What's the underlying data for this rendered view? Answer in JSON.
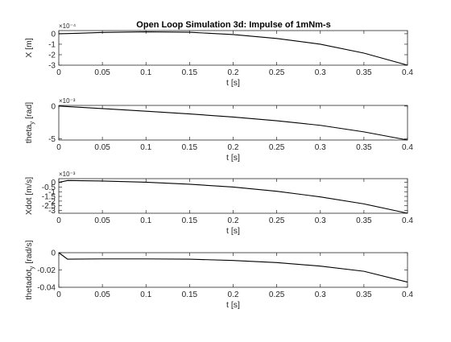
{
  "figure_title": "Open Loop Simulation 3d: Impulse of 1mNm-s",
  "chart_data": [
    {
      "type": "line",
      "title": "Open Loop Simulation 3d: Impulse of 1mNm-s",
      "xlabel": "t [s]",
      "ylabel": "X [m]",
      "ylabel_sub": "",
      "y_exponent": "×10⁻⁴",
      "xlim": [
        0,
        0.4
      ],
      "ylim": [
        -3,
        0.3
      ],
      "xticks": [
        0,
        0.05,
        0.1,
        0.15,
        0.2,
        0.25,
        0.3,
        0.35,
        0.4
      ],
      "xtick_labels": [
        "0",
        "0.05",
        "0.1",
        "0.15",
        "0.2",
        "0.25",
        "0.3",
        "0.35",
        "0.4"
      ],
      "yticks": [
        0,
        -1,
        -2,
        -3
      ],
      "ytick_labels": [
        "0",
        "-1",
        "-2",
        "-3"
      ],
      "grid": false,
      "series": [
        {
          "x": [
            0,
            0.01,
            0.02,
            0.05,
            0.1,
            0.15,
            0.2,
            0.25,
            0.3,
            0.35,
            0.4
          ],
          "y": [
            0,
            0.02,
            0.04,
            0.12,
            0.18,
            0.14,
            -0.08,
            -0.45,
            -1.0,
            -1.85,
            -3.0
          ]
        }
      ]
    },
    {
      "type": "line",
      "title": "",
      "xlabel": "t [s]",
      "ylabel": "theta",
      "ylabel_sub": "y",
      "ylabel_suffix": " [rad]",
      "y_exponent": "×10⁻³",
      "xlim": [
        0,
        0.4
      ],
      "ylim": [
        -5.2,
        0.1
      ],
      "xticks": [
        0,
        0.05,
        0.1,
        0.15,
        0.2,
        0.25,
        0.3,
        0.35,
        0.4
      ],
      "xtick_labels": [
        "0",
        "0.05",
        "0.1",
        "0.15",
        "0.2",
        "0.25",
        "0.3",
        "0.35",
        "0.4"
      ],
      "yticks": [
        0,
        -5
      ],
      "ytick_labels": [
        "0",
        "-5"
      ],
      "grid": false,
      "series": [
        {
          "x": [
            0,
            0.05,
            0.1,
            0.15,
            0.2,
            0.25,
            0.3,
            0.35,
            0.4
          ],
          "y": [
            0,
            -0.38,
            -0.78,
            -1.2,
            -1.68,
            -2.25,
            -2.95,
            -3.95,
            -5.2
          ]
        }
      ]
    },
    {
      "type": "line",
      "title": "",
      "xlabel": "t [s]",
      "ylabel": "Xdot [m/s]",
      "ylabel_sub": "",
      "y_exponent": "×10⁻³",
      "xlim": [
        0,
        0.4
      ],
      "ylim": [
        -3.3,
        0.4
      ],
      "xticks": [
        0,
        0.05,
        0.1,
        0.15,
        0.2,
        0.25,
        0.3,
        0.35,
        0.4
      ],
      "xtick_labels": [
        "0",
        "0.05",
        "0.1",
        "0.15",
        "0.2",
        "0.25",
        "0.3",
        "0.35",
        "0.4"
      ],
      "yticks": [
        0,
        -0.5,
        -1,
        -1.5,
        -2,
        -2.5,
        -3
      ],
      "ytick_labels": [
        "0",
        "-0.5",
        "-1",
        "-1.5",
        "-2",
        "-2.5",
        "-3"
      ],
      "grid": false,
      "series": [
        {
          "x": [
            0,
            0.01,
            0.05,
            0.1,
            0.15,
            0.2,
            0.25,
            0.3,
            0.35,
            0.4
          ],
          "y": [
            0,
            0.2,
            0.15,
            0.02,
            -0.2,
            -0.5,
            -0.95,
            -1.55,
            -2.3,
            -3.3
          ]
        }
      ]
    },
    {
      "type": "line",
      "title": "",
      "xlabel": "t [s]",
      "ylabel": "thetadot",
      "ylabel_sub": "y",
      "ylabel_suffix": " [rad/s]",
      "y_exponent": "",
      "xlim": [
        0,
        0.4
      ],
      "ylim": [
        -0.04,
        0
      ],
      "xticks": [
        0,
        0.05,
        0.1,
        0.15,
        0.2,
        0.25,
        0.3,
        0.35,
        0.4
      ],
      "xtick_labels": [
        "0",
        "0.05",
        "0.1",
        "0.15",
        "0.2",
        "0.25",
        "0.3",
        "0.35",
        "0.4"
      ],
      "yticks": [
        0,
        -0.02,
        -0.04
      ],
      "ytick_labels": [
        "0",
        "-0.02",
        "-0.04"
      ],
      "grid": false,
      "series": [
        {
          "x": [
            0,
            0.01,
            0.05,
            0.1,
            0.15,
            0.2,
            0.25,
            0.3,
            0.35,
            0.4
          ],
          "y": [
            0,
            -0.0075,
            -0.0072,
            -0.0072,
            -0.0075,
            -0.009,
            -0.0115,
            -0.0155,
            -0.0215,
            -0.034
          ]
        }
      ]
    }
  ]
}
